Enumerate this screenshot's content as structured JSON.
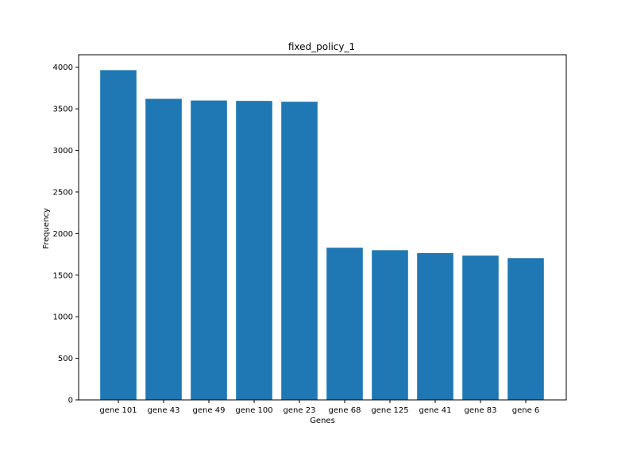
{
  "chart_data": {
    "type": "bar",
    "title": "fixed_policy_1",
    "xlabel": "Genes",
    "ylabel": "Frequency",
    "categories": [
      "gene 101",
      "gene 43",
      "gene 49",
      "gene 100",
      "gene 23",
      "gene 68",
      "gene 125",
      "gene 41",
      "gene 83",
      "gene 6"
    ],
    "values": [
      3965,
      3620,
      3600,
      3595,
      3585,
      1830,
      1800,
      1765,
      1735,
      1705
    ],
    "ylim": [
      0,
      4150
    ],
    "yticks": [
      0,
      500,
      1000,
      1500,
      2000,
      2500,
      3000,
      3500,
      4000
    ],
    "bar_color": "#1f77b4",
    "grid": false,
    "legend": false
  }
}
